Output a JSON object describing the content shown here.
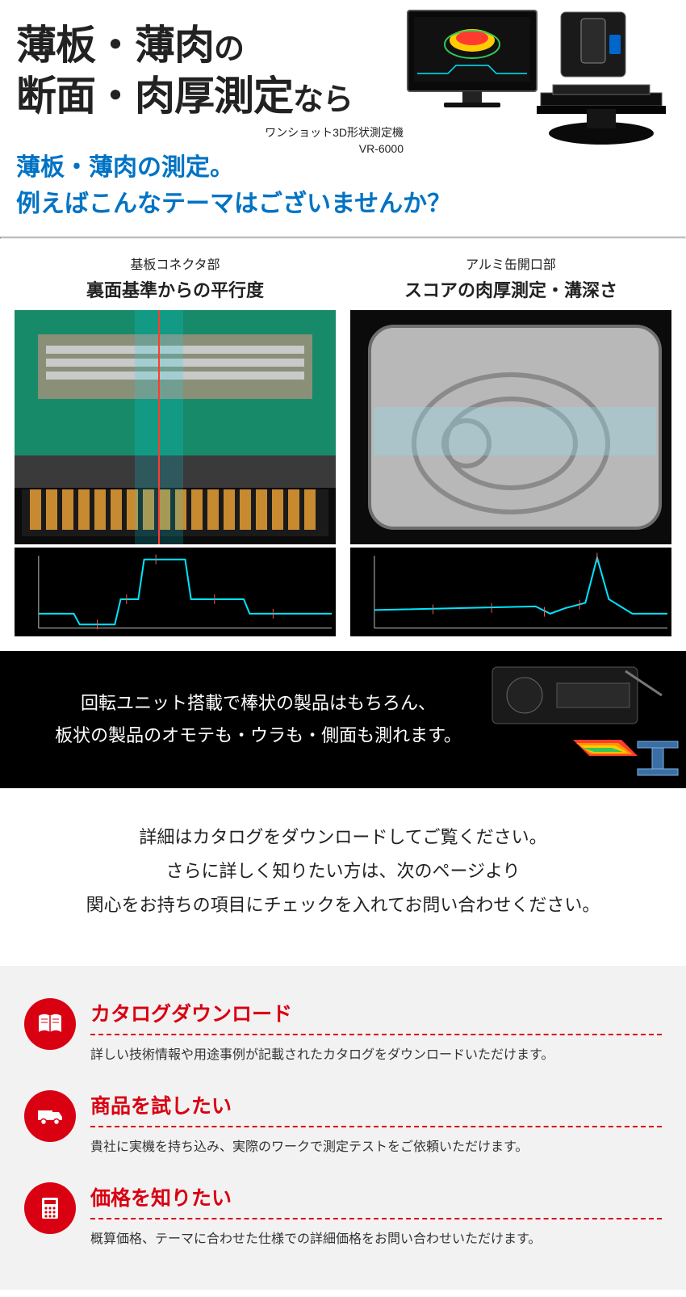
{
  "hero": {
    "line1_big": "薄板・薄肉",
    "line1_small": "の",
    "line2_big": "断面・肉厚測定",
    "line2_small": "なら",
    "device_caption_line1": "ワンショット3D形状測定機",
    "device_caption_line2": "VR-6000"
  },
  "subhead": {
    "line1": "薄板・薄肉の測定。",
    "line2": "例えばこんなテーマはございませんか？"
  },
  "examples": [
    {
      "sup": "基板コネクタ部",
      "title": "裏面基準からの平行度",
      "img_colors": {
        "bg": "#0b0b0b",
        "pcb": "#178a6a",
        "copper": "#c88a30",
        "metal": "#9aa0a6",
        "scan": "#00e5ff"
      },
      "chart": {
        "bg": "#000000",
        "axis": "#bfbfbf",
        "trace": "#00e5ff",
        "xrange": [
          0,
          100
        ],
        "yrange": [
          -1,
          1
        ],
        "points": [
          [
            0,
            -0.6
          ],
          [
            12,
            -0.6
          ],
          [
            14,
            -0.9
          ],
          [
            26,
            -0.9
          ],
          [
            28,
            -0.2
          ],
          [
            34,
            -0.2
          ],
          [
            36,
            0.9
          ],
          [
            50,
            0.9
          ],
          [
            52,
            -0.2
          ],
          [
            70,
            -0.2
          ],
          [
            72,
            -0.6
          ],
          [
            100,
            -0.6
          ]
        ],
        "markers": [
          [
            20,
            -0.9
          ],
          [
            30,
            -0.2
          ],
          [
            40,
            0.9
          ],
          [
            60,
            -0.2
          ],
          [
            80,
            -0.6
          ]
        ]
      }
    },
    {
      "sup": "アルミ缶開口部",
      "title": "スコアの肉厚測定・溝深さ",
      "img_colors": {
        "bg": "#0b0b0b",
        "metal": "#b8b8b8",
        "shadow": "#6e6e6e",
        "scan": "#8fd9e8"
      },
      "chart": {
        "bg": "#000000",
        "axis": "#bfbfbf",
        "trace": "#00e5ff",
        "xrange": [
          0,
          100
        ],
        "yrange": [
          -1,
          1
        ],
        "points": [
          [
            0,
            -0.5
          ],
          [
            55,
            -0.4
          ],
          [
            60,
            -0.6
          ],
          [
            65,
            -0.45
          ],
          [
            72,
            -0.3
          ],
          [
            76,
            0.95
          ],
          [
            80,
            -0.2
          ],
          [
            88,
            -0.6
          ],
          [
            100,
            -0.6
          ]
        ],
        "markers": [
          [
            20,
            -0.48
          ],
          [
            40,
            -0.44
          ],
          [
            58,
            -0.55
          ],
          [
            70,
            -0.35
          ],
          [
            76,
            0.95
          ]
        ]
      }
    }
  ],
  "black_band": {
    "line1": "回転ユニット搭載で棒状の製品はもちろん、",
    "line2": "板状の製品のオモテも・ウラも・側面も測れます。",
    "img_colors": {
      "body": "#1a1a1a",
      "edge": "#555",
      "rainbow": [
        "#ff3b30",
        "#ff9500",
        "#ffcc00",
        "#34c759",
        "#00c7be",
        "#007aff"
      ],
      "model": "#3a6ea5"
    }
  },
  "white_block": {
    "line1": "詳細はカタログをダウンロードしてご覧ください。",
    "line2": "さらに詳しく知りたい方は、次のページより",
    "line3": "関心をお持ちの項目にチェックを入れてお問い合わせください。"
  },
  "cta": [
    {
      "icon": "book",
      "title": "カタログダウンロード",
      "desc": "詳しい技術情報や用途事例が記載されたカタログをダウンロードいただけます。"
    },
    {
      "icon": "truck",
      "title": "商品を試したい",
      "desc": "貴社に実機を持ち込み、実際のワークで測定テストをご依頼いただけます。"
    },
    {
      "icon": "calc",
      "title": "価格を知りたい",
      "desc": "概算価格、テーマに合わせた仕様での詳細価格をお問い合わせいただけます。"
    }
  ],
  "palette": {
    "blue": "#0073c4",
    "red": "#d90012",
    "rule": "#d9d9d9",
    "cta_bg": "#f2f2f2"
  }
}
